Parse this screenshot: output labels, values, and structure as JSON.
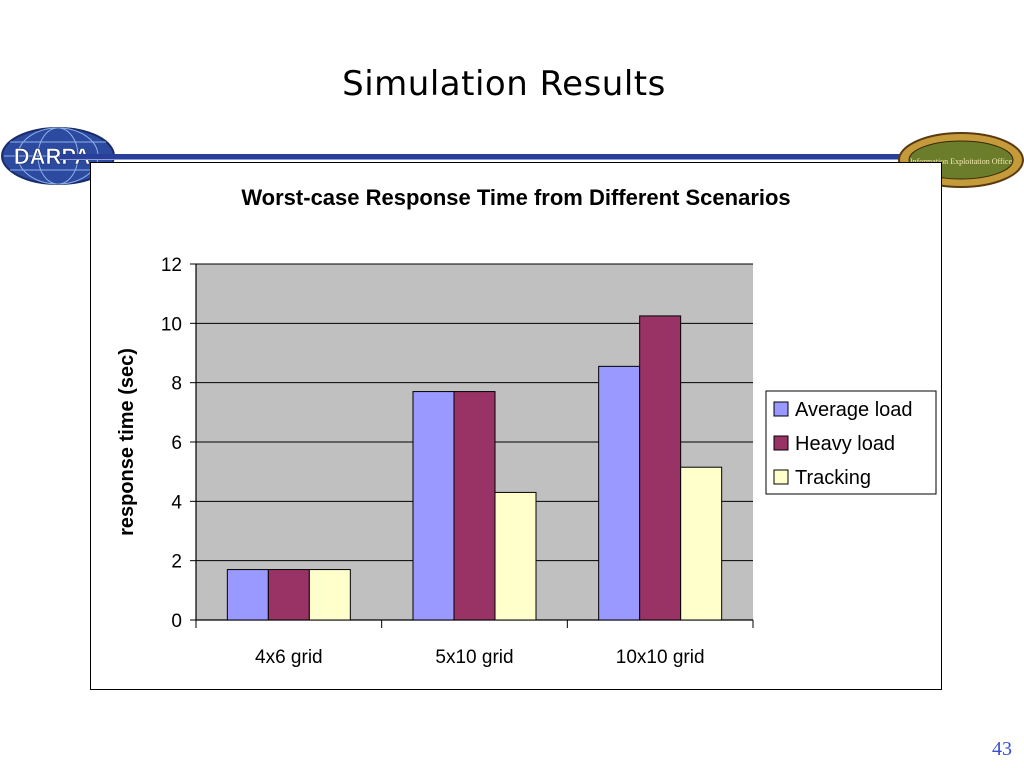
{
  "slide": {
    "title": "Simulation Results",
    "page_number": "43"
  },
  "logos": {
    "left": {
      "icon": "darpa-logo",
      "text": "DARPA"
    },
    "right": {
      "icon": "ieo-logo",
      "text": "Information Exploitation Office"
    }
  },
  "colors": {
    "header_rule": "#2a3f9a",
    "plot_area": "#c0c0c0",
    "page_number": "#3a4fd0"
  },
  "chart_data": {
    "type": "bar",
    "title": "Worst-case Response Time from Different Scenarios",
    "xlabel": "",
    "ylabel": "response time (sec)",
    "categories": [
      "4x6 grid",
      "5x10 grid",
      "10x10 grid"
    ],
    "ylim": [
      0,
      12
    ],
    "yticks": [
      0,
      2,
      4,
      6,
      8,
      10,
      12
    ],
    "grid": true,
    "legend_position": "right",
    "series": [
      {
        "name": "Average load",
        "color": "#9999ff",
        "values": [
          1.7,
          7.7,
          8.55
        ]
      },
      {
        "name": "Heavy load",
        "color": "#993366",
        "values": [
          1.7,
          7.7,
          10.25
        ]
      },
      {
        "name": "Tracking",
        "color": "#ffffcc",
        "values": [
          1.7,
          4.3,
          5.15
        ]
      }
    ]
  }
}
